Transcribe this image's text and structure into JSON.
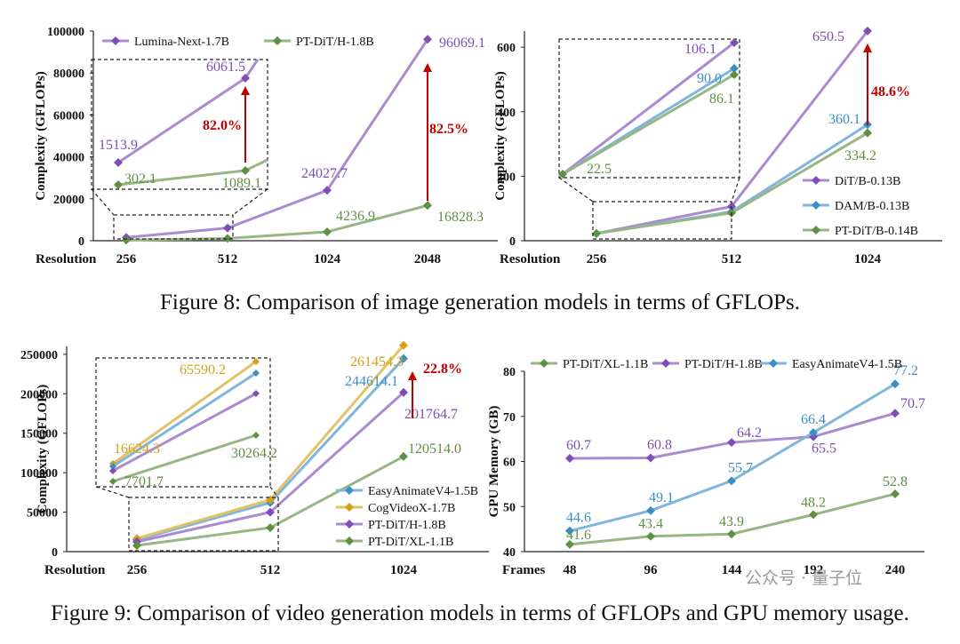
{
  "captions": {
    "fig8": "Figure 8: Comparison of image generation models in terms of GFLOPs.",
    "fig9": "Figure 9: Comparison of video generation models in terms of GFLOPs and GPU memory usage."
  },
  "watermark": "公众号 · 量子位",
  "chart_data": [
    {
      "id": "fig8-left",
      "type": "line",
      "ylabel": "Complexity (GFLOPs)",
      "xlabel": "Resolution",
      "categories": [
        "256",
        "512",
        "1024",
        "2048"
      ],
      "ylim": [
        0,
        100000
      ],
      "yticks": [
        "0",
        "20000",
        "40000",
        "60000",
        "80000",
        "100000"
      ],
      "series": [
        {
          "name": "Lumina-Next-1.7B",
          "color": "#7e4db5",
          "values": [
            1513.9,
            6061.5,
            24027.7,
            96069.1
          ],
          "labels": [
            "",
            "",
            "24027.7",
            "96069.1"
          ]
        },
        {
          "name": "PT-DiT/H-1.8B",
          "color": "#5f8f43",
          "values": [
            302.1,
            1089.1,
            4236.9,
            16828.3
          ],
          "labels": [
            "",
            "",
            "4236.9",
            "16828.3"
          ]
        }
      ],
      "annotations": {
        "arrow_label": "82.5%",
        "inset_arrow_label": "82.0%",
        "inset_labels": [
          "1513.9",
          "6061.5",
          "302.1",
          "1089.1"
        ]
      }
    },
    {
      "id": "fig8-right",
      "type": "line",
      "ylabel": "Complexity (GFLOPs)",
      "xlabel": "Resolution",
      "categories": [
        "256",
        "512",
        "1024"
      ],
      "ylim": [
        0,
        650
      ],
      "yticks": [
        "0",
        "200",
        "400",
        "600"
      ],
      "series": [
        {
          "name": "DiT/B-0.13B",
          "color": "#7e4db5",
          "values": [
            22.5,
            106.1,
            650.5
          ],
          "labels": [
            "",
            "",
            "650.5"
          ]
        },
        {
          "name": "DAM/B-0.13B",
          "color": "#3b8fc4",
          "values": [
            22.5,
            90.0,
            360.1
          ],
          "labels": [
            "",
            "",
            "360.1"
          ]
        },
        {
          "name": "PT-DiT/B-0.14B",
          "color": "#5f8f43",
          "values": [
            22.5,
            86.1,
            334.2
          ],
          "labels": [
            "",
            "",
            "334.2"
          ]
        }
      ],
      "annotations": {
        "arrow_label": "48.6%",
        "inset_labels": [
          "106.1",
          "90.0",
          "86.1",
          "22.5"
        ]
      }
    },
    {
      "id": "fig9-left",
      "type": "line",
      "ylabel": "Complexity (GFLOPs)",
      "xlabel": "Resolution",
      "categories": [
        "256",
        "512",
        "1024"
      ],
      "ylim": [
        0,
        260000
      ],
      "yticks": [
        "0",
        "50000",
        "100000",
        "150000",
        "200000",
        "250000"
      ],
      "series": [
        {
          "name": "EasyAnimateV4-1.5B",
          "color": "#3b8fc4",
          "values": [
            15000,
            62000,
            244614.1
          ],
          "labels": [
            "",
            "",
            "244614.1"
          ]
        },
        {
          "name": "CogVideoX-1.7B",
          "color": "#d4a017",
          "values": [
            16624.3,
            65590.2,
            261454.3
          ],
          "labels": [
            "",
            "",
            "261454.3"
          ]
        },
        {
          "name": "PT-DiT/H-1.8B",
          "color": "#7e4db5",
          "values": [
            12500,
            50000,
            201764.7
          ],
          "labels": [
            "",
            "",
            "201764.7"
          ]
        },
        {
          "name": "PT-DiT/XL-1.1B",
          "color": "#5f8f43",
          "values": [
            7701.7,
            30264.2,
            120514.0
          ],
          "labels": [
            "",
            "",
            "120514.0"
          ]
        }
      ],
      "annotations": {
        "arrow_label": "22.8%",
        "inset_labels": [
          "65590.2",
          "16624.3",
          "30264.2",
          "7701.7"
        ]
      }
    },
    {
      "id": "fig9-right",
      "type": "line",
      "ylabel": "GPU Memory (GB)",
      "xlabel": "Frames",
      "categories": [
        "48",
        "96",
        "144",
        "192",
        "240"
      ],
      "ylim": [
        40,
        80
      ],
      "yticks": [
        "40",
        "50",
        "60",
        "70",
        "80"
      ],
      "series": [
        {
          "name": "PT-DiT/XL-1.1B",
          "color": "#5f8f43",
          "values": [
            41.6,
            43.4,
            43.9,
            48.2,
            52.8
          ],
          "labels": [
            "41.6",
            "43.4",
            "43.9",
            "48.2",
            "52.8"
          ]
        },
        {
          "name": "PT-DiT/H-1.8B",
          "color": "#7e4db5",
          "values": [
            60.7,
            60.8,
            64.2,
            65.5,
            70.7
          ],
          "labels": [
            "60.7",
            "60.8",
            "64.2",
            "65.5",
            "70.7"
          ]
        },
        {
          "name": "EasyAnimateV4-1.5B",
          "color": "#3b8fc4",
          "values": [
            44.6,
            49.1,
            55.7,
            66.4,
            77.2
          ],
          "labels": [
            "44.6",
            "49.1",
            "55.7",
            "66.4",
            "77.2"
          ]
        }
      ]
    }
  ]
}
